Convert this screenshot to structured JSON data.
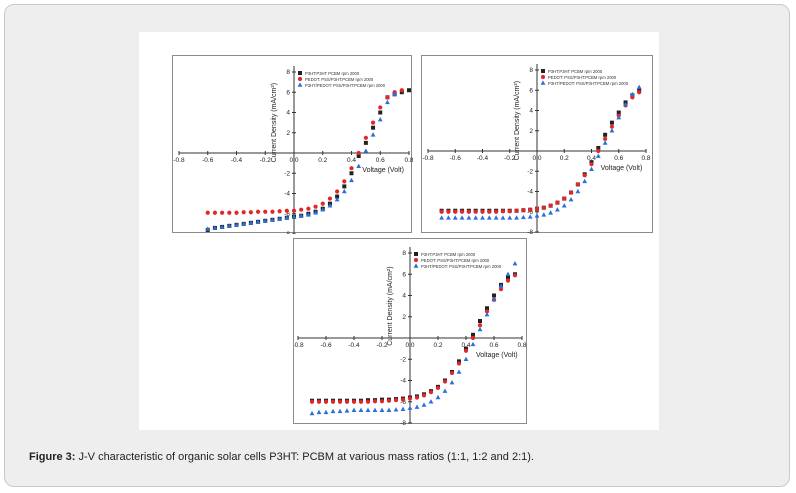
{
  "caption": {
    "label": "Figure 3:",
    "text": " J-V characteristic of organic solar cells P3HT: PCBM at various mass ratios (1:1, 1:2 and 2:1)."
  },
  "chart_data": [
    {
      "type": "scatter",
      "title": "",
      "xlabel": "Voltage (Volt)",
      "ylabel": "Current Density (mA/cm²)",
      "xlim": [
        -0.8,
        0.8
      ],
      "ylim": [
        -8,
        8
      ],
      "xticks": [
        "-0.8",
        "-0.6",
        "-0.4",
        "-0.2",
        "0.0",
        "0.2",
        "0.4",
        "0.6",
        "0.8"
      ],
      "yticks": [
        "8",
        "6",
        "4",
        "2",
        "0",
        "-2",
        "-4",
        "-6",
        "-8"
      ],
      "legend": "top-left",
      "series": [
        {
          "name": "P3HT:P3HT PCBM rpm 2000",
          "marker": "square",
          "color": "#222222",
          "x": [
            -0.6,
            -0.55,
            -0.5,
            -0.45,
            -0.4,
            -0.35,
            -0.3,
            -0.25,
            -0.2,
            -0.15,
            -0.1,
            -0.05,
            0.0,
            0.05,
            0.1,
            0.15,
            0.2,
            0.25,
            0.3,
            0.35,
            0.4,
            0.45,
            0.5,
            0.55,
            0.6,
            0.65,
            0.7,
            0.75,
            0.8
          ],
          "y": [
            -7.6,
            -7.4,
            -7.3,
            -7.2,
            -7.1,
            -7.0,
            -6.9,
            -6.8,
            -6.7,
            -6.6,
            -6.5,
            -6.4,
            -6.3,
            -6.2,
            -6.0,
            -5.8,
            -5.5,
            -5.0,
            -4.3,
            -3.3,
            -2.0,
            -0.3,
            1.0,
            2.5,
            4.0,
            5.5,
            5.8,
            6.0,
            6.2
          ]
        },
        {
          "name": "PEDOT: PSS/P3HT:PCBM rpm 2000",
          "marker": "circle",
          "color": "#e0282b",
          "x": [
            -0.6,
            -0.55,
            -0.5,
            -0.45,
            -0.4,
            -0.35,
            -0.3,
            -0.25,
            -0.2,
            -0.15,
            -0.1,
            -0.05,
            0.0,
            0.05,
            0.1,
            0.15,
            0.2,
            0.25,
            0.3,
            0.35,
            0.4,
            0.45,
            0.5,
            0.55,
            0.6,
            0.65,
            0.7,
            0.75
          ],
          "y": [
            -5.9,
            -5.9,
            -5.9,
            -5.9,
            -5.9,
            -5.85,
            -5.85,
            -5.8,
            -5.8,
            -5.8,
            -5.75,
            -5.7,
            -5.7,
            -5.6,
            -5.5,
            -5.3,
            -5.0,
            -4.5,
            -3.8,
            -2.8,
            -1.5,
            0.0,
            1.5,
            3.0,
            4.5,
            5.5,
            6.0,
            6.2
          ]
        },
        {
          "name": "P3HT/PEDOT: PSS/P3HT:PCBM rpm 2000",
          "marker": "triangle",
          "color": "#2a6fdb",
          "x": [
            -0.6,
            -0.55,
            -0.5,
            -0.45,
            -0.4,
            -0.35,
            -0.3,
            -0.25,
            -0.2,
            -0.15,
            -0.1,
            -0.05,
            0.0,
            0.05,
            0.1,
            0.15,
            0.2,
            0.25,
            0.3,
            0.35,
            0.4,
            0.45,
            0.5,
            0.55,
            0.6,
            0.65,
            0.7
          ],
          "y": [
            -7.5,
            -7.4,
            -7.3,
            -7.2,
            -7.1,
            -7.0,
            -6.9,
            -6.8,
            -6.7,
            -6.6,
            -6.5,
            -6.4,
            -6.3,
            -6.2,
            -6.1,
            -5.9,
            -5.6,
            -5.2,
            -4.6,
            -3.8,
            -2.7,
            -1.3,
            0.2,
            1.8,
            3.3,
            5.0,
            5.8
          ]
        }
      ]
    },
    {
      "type": "scatter",
      "title": "",
      "xlabel": "Voltage (Volt)",
      "ylabel": "Current Density (mA/cm²)",
      "xlim": [
        -0.8,
        0.8
      ],
      "ylim": [
        -8,
        8
      ],
      "xticks": [
        "-0.8",
        "-0.6",
        "-0.4",
        "-0.2",
        "0.0",
        "0.2",
        "0.4",
        "0.6",
        "0.8"
      ],
      "yticks": [
        "8",
        "6",
        "4",
        "2",
        "0",
        "-2",
        "-4",
        "-6",
        "-8"
      ],
      "legend": "top-left",
      "series": [
        {
          "name": "P3HT:P3HT PCBM rpm 2000",
          "marker": "square",
          "color": "#222222",
          "x": [
            -0.7,
            -0.65,
            -0.6,
            -0.55,
            -0.5,
            -0.45,
            -0.4,
            -0.35,
            -0.3,
            -0.25,
            -0.2,
            -0.15,
            -0.1,
            -0.05,
            0.0,
            0.05,
            0.1,
            0.15,
            0.2,
            0.25,
            0.3,
            0.35,
            0.4,
            0.45,
            0.5,
            0.55,
            0.6,
            0.65,
            0.7,
            0.75
          ],
          "y": [
            -5.9,
            -5.9,
            -5.9,
            -5.9,
            -5.9,
            -5.9,
            -5.9,
            -5.9,
            -5.9,
            -5.9,
            -5.9,
            -5.9,
            -5.85,
            -5.8,
            -5.7,
            -5.6,
            -5.4,
            -5.1,
            -4.7,
            -4.1,
            -3.3,
            -2.3,
            -1.1,
            0.3,
            1.6,
            2.8,
            3.8,
            4.8,
            5.5,
            6.0
          ]
        },
        {
          "name": "PEDOT: PSS/P3HT:PCBM rpm 2000",
          "marker": "circle",
          "color": "#e0282b",
          "x": [
            -0.7,
            -0.65,
            -0.6,
            -0.55,
            -0.5,
            -0.45,
            -0.4,
            -0.35,
            -0.3,
            -0.25,
            -0.2,
            -0.15,
            -0.1,
            -0.05,
            0.0,
            0.05,
            0.1,
            0.15,
            0.2,
            0.25,
            0.3,
            0.35,
            0.4,
            0.45,
            0.5,
            0.55,
            0.6,
            0.65,
            0.7,
            0.75
          ],
          "y": [
            -6.0,
            -6.0,
            -6.0,
            -6.0,
            -6.0,
            -6.0,
            -6.0,
            -6.0,
            -6.0,
            -5.95,
            -5.95,
            -5.9,
            -5.85,
            -5.8,
            -5.7,
            -5.6,
            -5.4,
            -5.1,
            -4.7,
            -4.1,
            -3.3,
            -2.4,
            -1.3,
            0.0,
            1.2,
            2.4,
            3.5,
            4.5,
            5.3,
            5.8
          ]
        },
        {
          "name": "P3HT/PEDOT: PSS/P3HT:PCBM rpm 2000",
          "marker": "triangle",
          "color": "#2a6fdb",
          "x": [
            -0.7,
            -0.65,
            -0.6,
            -0.55,
            -0.5,
            -0.45,
            -0.4,
            -0.35,
            -0.3,
            -0.25,
            -0.2,
            -0.15,
            -0.1,
            -0.05,
            0.0,
            0.05,
            0.1,
            0.15,
            0.2,
            0.25,
            0.3,
            0.35,
            0.4,
            0.45,
            0.5,
            0.55,
            0.6,
            0.65,
            0.7,
            0.75
          ],
          "y": [
            -6.6,
            -6.6,
            -6.6,
            -6.6,
            -6.6,
            -6.6,
            -6.6,
            -6.6,
            -6.6,
            -6.6,
            -6.6,
            -6.6,
            -6.55,
            -6.5,
            -6.4,
            -6.3,
            -6.1,
            -5.8,
            -5.4,
            -4.8,
            -4.0,
            -3.0,
            -1.8,
            -0.5,
            0.8,
            2.0,
            3.3,
            4.6,
            5.6,
            6.3
          ]
        }
      ]
    },
    {
      "type": "scatter",
      "title": "",
      "xlabel": "Voltage (Volt)",
      "ylabel": "Current Density (mA/cm²)",
      "xlim": [
        -0.8,
        0.8
      ],
      "ylim": [
        -8,
        8
      ],
      "xticks": [
        "-0.8",
        "-0.6",
        "-0.4",
        "-0.2",
        "0.0",
        "0.2",
        "0.4",
        "0.6",
        "0.8"
      ],
      "yticks": [
        "8",
        "6",
        "4",
        "2",
        "0",
        "-2",
        "-4",
        "-6",
        "-8"
      ],
      "legend": "top-left",
      "series": [
        {
          "name": "P3HT:P3HT PCBM rpm 2000",
          "marker": "square",
          "color": "#222222",
          "x": [
            -0.7,
            -0.65,
            -0.6,
            -0.55,
            -0.5,
            -0.45,
            -0.4,
            -0.35,
            -0.3,
            -0.25,
            -0.2,
            -0.15,
            -0.1,
            -0.05,
            0.0,
            0.05,
            0.1,
            0.15,
            0.2,
            0.25,
            0.3,
            0.35,
            0.4,
            0.45,
            0.5,
            0.55,
            0.6,
            0.65,
            0.7,
            0.75
          ],
          "y": [
            -5.9,
            -5.9,
            -5.9,
            -5.9,
            -5.9,
            -5.9,
            -5.9,
            -5.9,
            -5.85,
            -5.85,
            -5.8,
            -5.8,
            -5.75,
            -5.7,
            -5.6,
            -5.5,
            -5.3,
            -5.0,
            -4.6,
            -4.0,
            -3.2,
            -2.2,
            -1.0,
            0.3,
            1.6,
            2.8,
            4.0,
            5.0,
            5.7,
            6.0
          ]
        },
        {
          "name": "PEDOT: PSS/P3HT:PCBM rpm 2000",
          "marker": "circle",
          "color": "#e0282b",
          "x": [
            -0.7,
            -0.65,
            -0.6,
            -0.55,
            -0.5,
            -0.45,
            -0.4,
            -0.35,
            -0.3,
            -0.25,
            -0.2,
            -0.15,
            -0.1,
            -0.05,
            0.0,
            0.05,
            0.1,
            0.15,
            0.2,
            0.25,
            0.3,
            0.35,
            0.4,
            0.45,
            0.5,
            0.55,
            0.6,
            0.65,
            0.7,
            0.75
          ],
          "y": [
            -6.0,
            -6.0,
            -6.0,
            -6.0,
            -6.0,
            -6.0,
            -6.0,
            -6.0,
            -6.0,
            -5.95,
            -5.95,
            -5.9,
            -5.85,
            -5.8,
            -5.7,
            -5.6,
            -5.4,
            -5.1,
            -4.7,
            -4.1,
            -3.3,
            -2.4,
            -1.2,
            0.0,
            1.2,
            2.5,
            3.6,
            4.6,
            5.4,
            5.9
          ]
        },
        {
          "name": "P3HT/PEDOT: PSS/P3HT:PCBM rpm 2000",
          "marker": "triangle",
          "color": "#2a6fdb",
          "x": [
            -0.7,
            -0.65,
            -0.6,
            -0.55,
            -0.5,
            -0.45,
            -0.4,
            -0.35,
            -0.3,
            -0.25,
            -0.2,
            -0.15,
            -0.1,
            -0.05,
            0.0,
            0.05,
            0.1,
            0.15,
            0.2,
            0.25,
            0.3,
            0.35,
            0.4,
            0.45,
            0.5,
            0.55,
            0.6,
            0.65,
            0.7,
            0.75
          ],
          "y": [
            -7.1,
            -7.0,
            -7.0,
            -6.9,
            -6.9,
            -6.85,
            -6.8,
            -6.8,
            -6.8,
            -6.8,
            -6.8,
            -6.8,
            -6.75,
            -6.7,
            -6.6,
            -6.5,
            -6.3,
            -6.0,
            -5.6,
            -5.0,
            -4.2,
            -3.2,
            -2.0,
            -0.6,
            0.8,
            2.2,
            3.6,
            4.9,
            6.0,
            7.0
          ]
        }
      ]
    }
  ]
}
